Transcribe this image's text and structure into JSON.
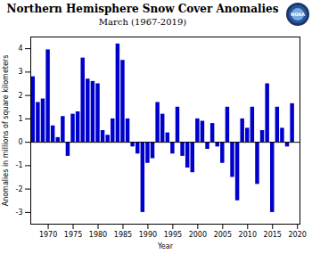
{
  "chart_data": {
    "type": "bar",
    "title": "Northern Hemisphere Snow Cover Anomalies",
    "subtitle": "March (1967-2019)",
    "xlabel": "Year",
    "ylabel": "Anomalies in millions of square kilometers",
    "annotations": [
      "NOAA"
    ],
    "x": [
      1967,
      1968,
      1969,
      1970,
      1971,
      1972,
      1973,
      1974,
      1975,
      1976,
      1977,
      1978,
      1979,
      1980,
      1981,
      1982,
      1983,
      1984,
      1985,
      1986,
      1987,
      1988,
      1989,
      1990,
      1991,
      1992,
      1993,
      1994,
      1995,
      1996,
      1997,
      1998,
      1999,
      2000,
      2001,
      2002,
      2003,
      2004,
      2005,
      2006,
      2007,
      2008,
      2009,
      2010,
      2011,
      2012,
      2013,
      2014,
      2015,
      2016,
      2017,
      2018,
      2019
    ],
    "values": [
      2.8,
      1.7,
      1.85,
      3.95,
      0.7,
      0.2,
      1.1,
      -0.6,
      1.2,
      1.3,
      3.6,
      2.7,
      2.6,
      2.5,
      0.5,
      0.3,
      1.0,
      4.2,
      3.5,
      1.0,
      -0.2,
      -0.5,
      -3.0,
      -0.9,
      -0.7,
      1.7,
      1.2,
      0.4,
      -0.5,
      1.5,
      -0.6,
      -1.1,
      -1.3,
      1.0,
      0.9,
      -0.3,
      0.8,
      -0.2,
      -0.9,
      1.5,
      -1.5,
      -2.5,
      1.0,
      0.6,
      1.5,
      -1.8,
      0.5,
      2.5,
      -3.0,
      1.5,
      0.6,
      -0.2,
      1.65
    ],
    "color": "#0000cc",
    "xlim": [
      1966.5,
      2020.5
    ],
    "xticks": [
      1970,
      1975,
      1980,
      1985,
      1990,
      1995,
      2000,
      2005,
      2010,
      2015,
      2020
    ],
    "ylim": [
      -3.5,
      4.5
    ],
    "yticks": [
      -3,
      -2,
      -1,
      0,
      1,
      2,
      3,
      4
    ],
    "grid": false
  }
}
